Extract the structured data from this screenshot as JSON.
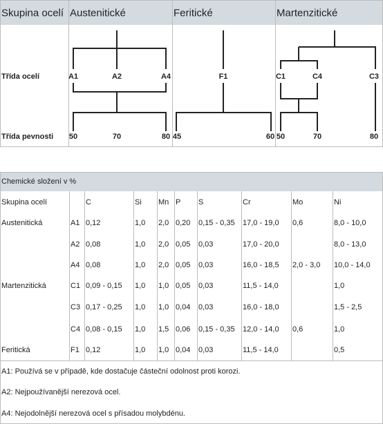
{
  "top": {
    "columns": [
      "Skupina ocelí",
      "Austenitické",
      "Feritické",
      "Martenzitické"
    ],
    "row_labels": [
      "Třída ocelí",
      "Třída pevnosti"
    ],
    "grades": [
      [
        "A1",
        "A2",
        "A4"
      ],
      [
        "F1"
      ],
      [
        "C1",
        "C4",
        "C3"
      ]
    ],
    "strengths": [
      [
        "50",
        "70",
        "80"
      ],
      [
        "45",
        "60"
      ],
      [
        "50",
        "70",
        "80"
      ]
    ]
  },
  "chemical": {
    "title": "Chemické složení v %",
    "headers": [
      "Skupina ocelí",
      null,
      "C",
      "Si",
      "Mn",
      "P",
      "S",
      "Cr",
      "Mo",
      "Ni"
    ],
    "rows": [
      [
        "Austenitická",
        "A1",
        "0,12",
        "1,0",
        "2,0",
        "0,20",
        "0,15 - 0,35",
        "17,0 - 19,0",
        "0,6",
        "8,0 - 10,0"
      ],
      [
        null,
        "A2",
        "0,08",
        "1,0",
        "2,0",
        "0,05",
        "0,03",
        "17,0 - 20,0",
        null,
        "8,0 - 13,0"
      ],
      [
        null,
        "A4",
        "0,08",
        "1,0",
        "2,0",
        "0,05",
        "0,03",
        "16,0 - 18,5",
        "2,0 - 3,0",
        "10,0 - 14,0"
      ],
      [
        "Martenzitická",
        "C1",
        "0,09 - 0,15",
        "1,0",
        "1,0",
        "0,05",
        "0,03",
        "11,5 - 14,0",
        null,
        "1,0"
      ],
      [
        null,
        "C3",
        "0,17 - 0,25",
        "1,0",
        "1,0",
        "0,04",
        "0,03",
        "16,0 - 18,0",
        null,
        "1,5 - 2,5"
      ],
      [
        null,
        "C4",
        "0,08 - 0,15",
        "1,0",
        "1,5",
        "0,06",
        "0,15 - 0,35",
        "12,0 - 14,0",
        "0,6",
        "1,0"
      ],
      [
        "Feritická",
        "F1",
        "0,12",
        "1,0",
        "1,0",
        "0,04",
        "0,03",
        "11,5 - 14,0",
        null,
        "0,5"
      ]
    ]
  },
  "notes": [
    "A1: Používá se v případě, kde dostačuje částeční odolnost proti korozi.",
    "A2: Nejpoužívanější nerezová ocel.",
    "A4: Nejodolnější nerezová ocel s přísadou molybdénu."
  ]
}
